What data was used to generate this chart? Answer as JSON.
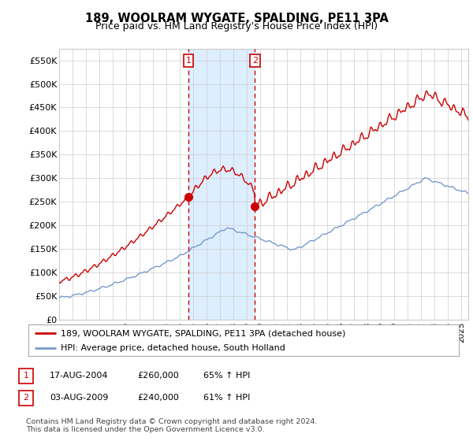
{
  "title": "189, WOOLRAM WYGATE, SPALDING, PE11 3PA",
  "subtitle": "Price paid vs. HM Land Registry's House Price Index (HPI)",
  "ylabel_ticks": [
    "£0",
    "£50K",
    "£100K",
    "£150K",
    "£200K",
    "£250K",
    "£300K",
    "£350K",
    "£400K",
    "£450K",
    "£500K",
    "£550K"
  ],
  "ytick_values": [
    0,
    50000,
    100000,
    150000,
    200000,
    250000,
    300000,
    350000,
    400000,
    450000,
    500000,
    550000
  ],
  "ylim": [
    0,
    575000
  ],
  "sale1_date": 2004.63,
  "sale1_price": 260000,
  "sale1_label": "1",
  "sale2_date": 2009.59,
  "sale2_price": 240000,
  "sale2_label": "2",
  "vline1_x": 2004.63,
  "vline2_x": 2009.59,
  "shade_xmin": 2004.63,
  "shade_xmax": 2009.59,
  "red_line_color": "#cc0000",
  "blue_line_color": "#7799cc",
  "shade_color": "#ddeeff",
  "grid_color": "#cccccc",
  "background_color": "#ffffff",
  "legend_entry1": "189, WOOLRAM WYGATE, SPALDING, PE11 3PA (detached house)",
  "legend_entry2": "HPI: Average price, detached house, South Holland",
  "table_row1": [
    "1",
    "17-AUG-2004",
    "£260,000",
    "65% ↑ HPI"
  ],
  "table_row2": [
    "2",
    "03-AUG-2009",
    "£240,000",
    "61% ↑ HPI"
  ],
  "footer": "Contains HM Land Registry data © Crown copyright and database right 2024.\nThis data is licensed under the Open Government Licence v3.0.",
  "xmin": 1995.0,
  "xmax": 2025.5
}
